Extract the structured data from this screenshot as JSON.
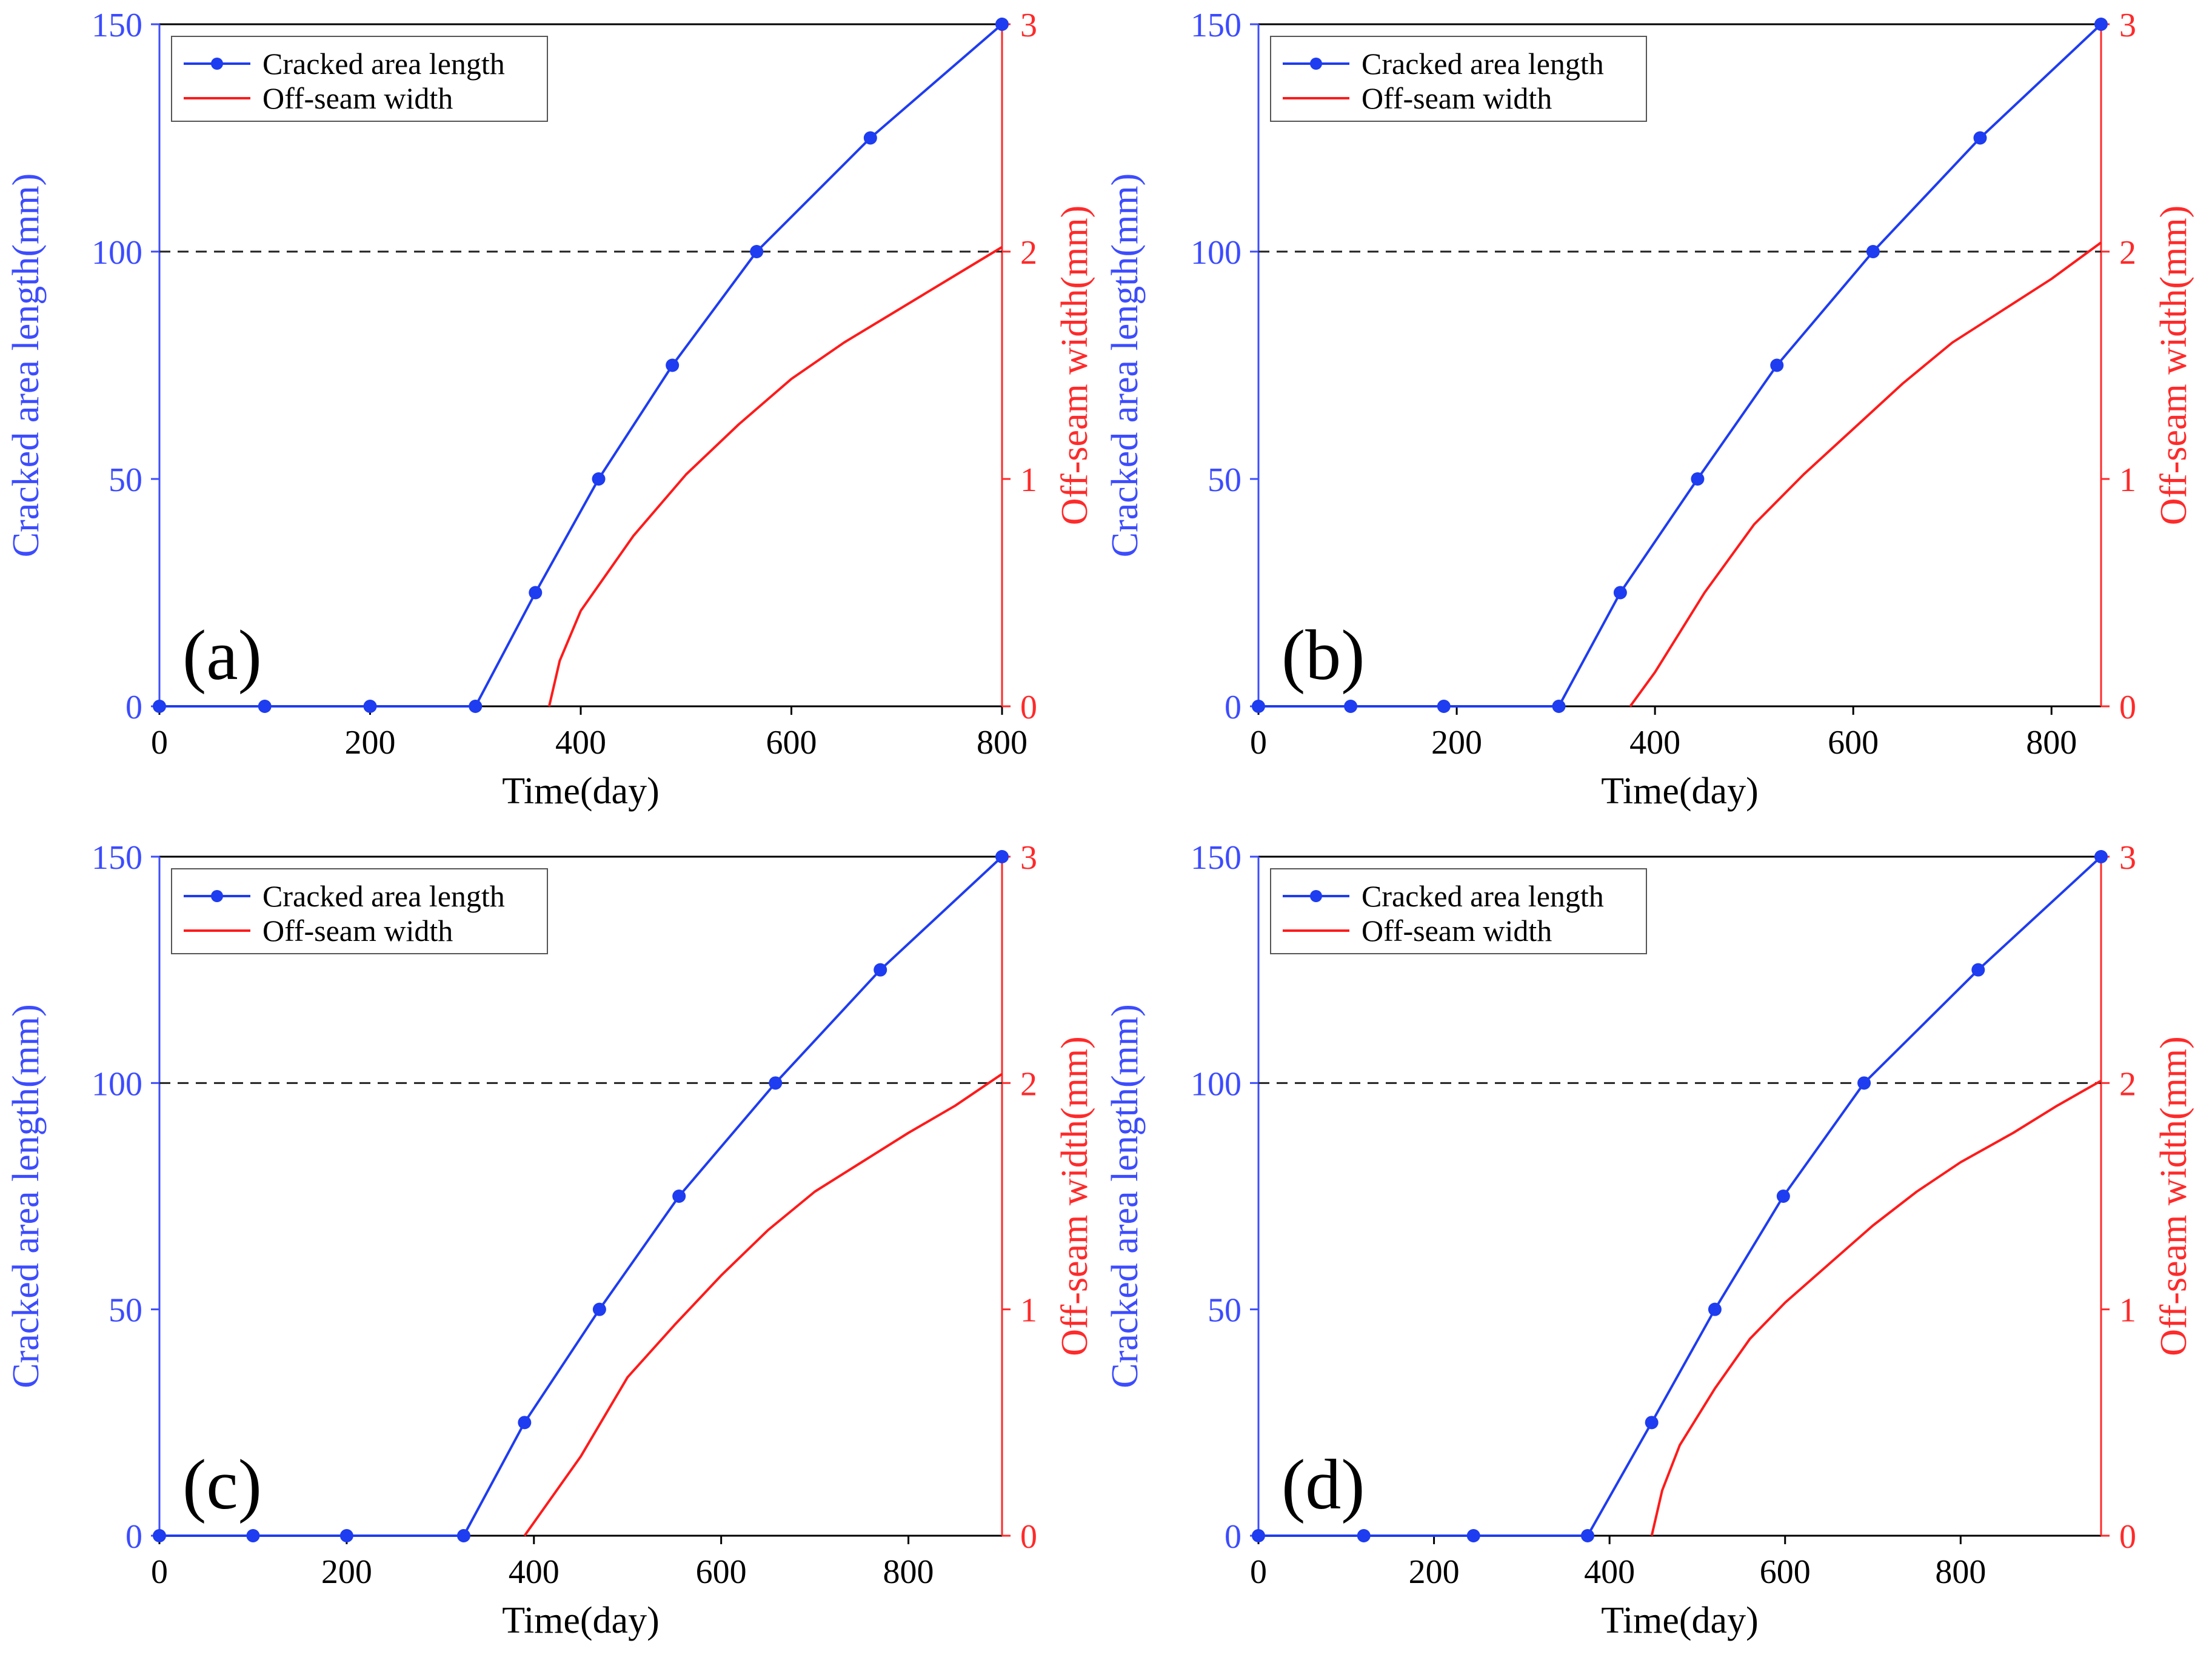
{
  "figure": {
    "name": "cracked-area-vs-offseam-width",
    "panels": 4
  },
  "colors": {
    "length_series": "#1e3cf0",
    "width_series": "#ff1a1a",
    "left_axis": "#3c4cff",
    "right_axis": "#ff2a2a",
    "threshold_line": "#222222"
  },
  "chart_data": [
    {
      "type": "line",
      "panel_label": "(a)",
      "xlabel": "Time(day)",
      "ylabel_left": "Cracked area length(mm)",
      "ylabel_right": "Off-seam width(mm)",
      "xlim": [
        0,
        800
      ],
      "x_ticks": [
        "0",
        "200",
        "400",
        "600",
        "800"
      ],
      "ylim_left": [
        0,
        150
      ],
      "y_ticks_left": [
        "0",
        "50",
        "100",
        "150"
      ],
      "ylim_right": [
        0,
        3
      ],
      "y_ticks_right": [
        "0",
        "1",
        "2",
        "3"
      ],
      "threshold": {
        "axis": "left",
        "value": 100,
        "style": "dashed"
      },
      "legend": {
        "position": "top-left",
        "entries": [
          "Cracked area length",
          "Off-seam width"
        ]
      },
      "series": [
        {
          "name": "Cracked area length",
          "axis": "left",
          "marker": "circle",
          "x": [
            0,
            100,
            200,
            300,
            357,
            417,
            487,
            567,
            675,
            800
          ],
          "y": [
            0,
            0,
            0,
            0,
            25,
            50,
            75,
            100,
            125,
            150
          ]
        },
        {
          "name": "Off-seam width",
          "axis": "right",
          "marker": "none",
          "x": [
            370,
            380,
            400,
            450,
            500,
            550,
            600,
            650,
            700,
            750,
            800
          ],
          "y": [
            0,
            0.2,
            0.42,
            0.75,
            1.02,
            1.24,
            1.44,
            1.6,
            1.74,
            1.88,
            2.02
          ]
        }
      ]
    },
    {
      "type": "line",
      "panel_label": "(b)",
      "xlabel": "Time(day)",
      "ylabel_left": "Cracked area length(mm)",
      "ylabel_right": "Off-seam width(mm)",
      "xlim": [
        0,
        850
      ],
      "x_ticks": [
        "0",
        "200",
        "400",
        "600",
        "800"
      ],
      "ylim_left": [
        0,
        150
      ],
      "y_ticks_left": [
        "0",
        "50",
        "100",
        "150"
      ],
      "ylim_right": [
        0,
        3
      ],
      "y_ticks_right": [
        "0",
        "1",
        "2",
        "3"
      ],
      "threshold": {
        "axis": "left",
        "value": 100,
        "style": "dashed"
      },
      "legend": {
        "position": "top-left",
        "entries": [
          "Cracked area length",
          "Off-seam width"
        ]
      },
      "series": [
        {
          "name": "Cracked area length",
          "axis": "left",
          "marker": "circle",
          "x": [
            0,
            93,
            187,
            303,
            365,
            443,
            523,
            620,
            728,
            850
          ],
          "y": [
            0,
            0,
            0,
            0,
            25,
            50,
            75,
            100,
            125,
            150
          ]
        },
        {
          "name": "Off-seam width",
          "axis": "right",
          "marker": "none",
          "x": [
            375,
            400,
            450,
            500,
            550,
            600,
            650,
            700,
            750,
            800,
            850
          ],
          "y": [
            0,
            0.15,
            0.5,
            0.8,
            1.02,
            1.22,
            1.42,
            1.6,
            1.74,
            1.88,
            2.04
          ]
        }
      ]
    },
    {
      "type": "line",
      "panel_label": "(c)",
      "xlabel": "Time(day)",
      "ylabel_left": "Cracked area length(mm)",
      "ylabel_right": "Off-seam width(mm)",
      "xlim": [
        0,
        900
      ],
      "x_ticks": [
        "0",
        "200",
        "400",
        "600",
        "800"
      ],
      "ylim_left": [
        0,
        150
      ],
      "y_ticks_left": [
        "0",
        "50",
        "100",
        "150"
      ],
      "ylim_right": [
        0,
        3
      ],
      "y_ticks_right": [
        "0",
        "1",
        "2",
        "3"
      ],
      "threshold": {
        "axis": "left",
        "value": 100,
        "style": "dashed"
      },
      "legend": {
        "position": "top-left",
        "entries": [
          "Cracked area length",
          "Off-seam width"
        ]
      },
      "series": [
        {
          "name": "Cracked area length",
          "axis": "left",
          "marker": "circle",
          "x": [
            0,
            100,
            200,
            325,
            390,
            470,
            555,
            658,
            770,
            900
          ],
          "y": [
            0,
            0,
            0,
            0,
            25,
            50,
            75,
            100,
            125,
            150
          ]
        },
        {
          "name": "Off-seam width",
          "axis": "right",
          "marker": "none",
          "x": [
            390,
            450,
            500,
            550,
            600,
            650,
            700,
            750,
            800,
            850,
            900
          ],
          "y": [
            0,
            0.35,
            0.7,
            0.93,
            1.15,
            1.35,
            1.52,
            1.65,
            1.78,
            1.9,
            2.04
          ]
        }
      ]
    },
    {
      "type": "line",
      "panel_label": "(d)",
      "xlabel": "Time(day)",
      "ylabel_left": "Cracked area length(mm)",
      "ylabel_right": "Off-seam width(mm)",
      "xlim": [
        0,
        960
      ],
      "x_ticks": [
        "0",
        "200",
        "400",
        "600",
        "800"
      ],
      "ylim_left": [
        0,
        150
      ],
      "y_ticks_left": [
        "0",
        "50",
        "100",
        "150"
      ],
      "ylim_right": [
        0,
        3
      ],
      "y_ticks_right": [
        "0",
        "1",
        "2",
        "3"
      ],
      "threshold": {
        "axis": "left",
        "value": 100,
        "style": "dashed"
      },
      "legend": {
        "position": "top-left",
        "entries": [
          "Cracked area length",
          "Off-seam width"
        ]
      },
      "series": [
        {
          "name": "Cracked area length",
          "axis": "left",
          "marker": "circle",
          "x": [
            0,
            120,
            245,
            375,
            448,
            520,
            598,
            690,
            820,
            960
          ],
          "y": [
            0,
            0,
            0,
            0,
            25,
            50,
            75,
            100,
            125,
            150
          ]
        },
        {
          "name": "Off-seam width",
          "axis": "right",
          "marker": "none",
          "x": [
            448,
            460,
            480,
            520,
            560,
            600,
            650,
            700,
            750,
            800,
            860,
            910,
            960
          ],
          "y": [
            0,
            0.2,
            0.4,
            0.65,
            0.87,
            1.03,
            1.2,
            1.37,
            1.52,
            1.65,
            1.78,
            1.9,
            2.01
          ]
        }
      ]
    }
  ]
}
